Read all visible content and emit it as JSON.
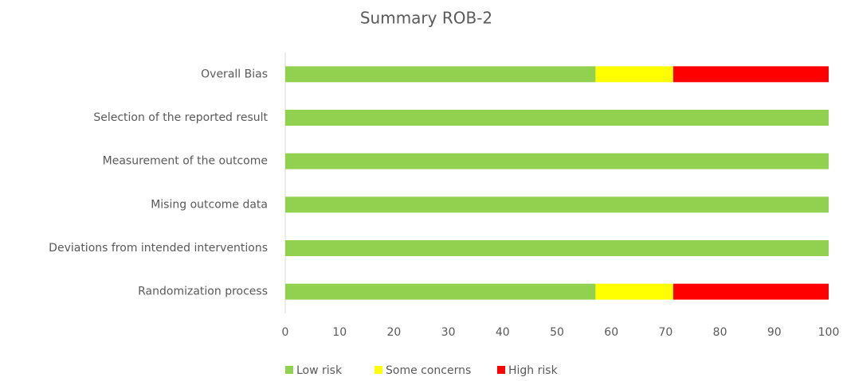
{
  "chart_data": {
    "type": "stacked_bar_horizontal",
    "title": "Summary ROB-2",
    "categories": [
      "Overall Bias",
      "Selection of the reported result",
      "Measurement of the outcome",
      "Mising outcome data",
      "Deviations from intended interventions",
      "Randomization process"
    ],
    "series": [
      {
        "name": "Low risk",
        "color": "#92d050",
        "values": [
          57.1,
          100,
          100,
          100,
          100,
          57.1
        ]
      },
      {
        "name": "Some concerns",
        "color": "#ffff00",
        "values": [
          14.3,
          0,
          0,
          0,
          0,
          14.3
        ]
      },
      {
        "name": "High risk",
        "color": "#ff0000",
        "values": [
          28.6,
          0,
          0,
          0,
          0,
          28.6
        ]
      }
    ],
    "xlim": [
      0,
      100
    ],
    "xticks": [
      0,
      10,
      20,
      30,
      40,
      50,
      60,
      70,
      80,
      90,
      100
    ],
    "grid": false,
    "legend": "bottom"
  }
}
